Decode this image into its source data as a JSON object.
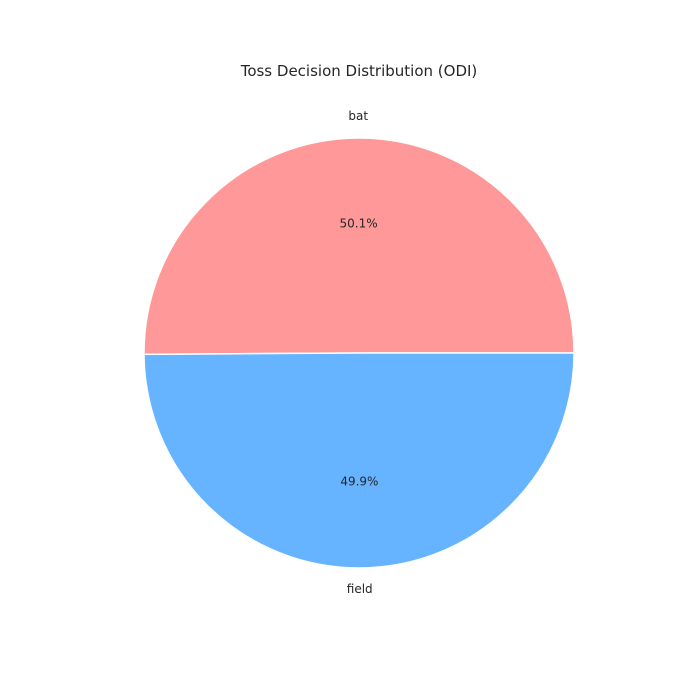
{
  "chart_data": {
    "type": "pie",
    "title": "Toss Decision Distribution (ODI)",
    "labels": [
      "bat",
      "field"
    ],
    "values": [
      50.1,
      49.9
    ],
    "percent_labels": [
      "50.1%",
      "49.9%"
    ],
    "colors": [
      "#ff9999",
      "#66b3ff"
    ],
    "start_angle_deg": 0,
    "direction": "counterclockwise",
    "legend": "none"
  }
}
